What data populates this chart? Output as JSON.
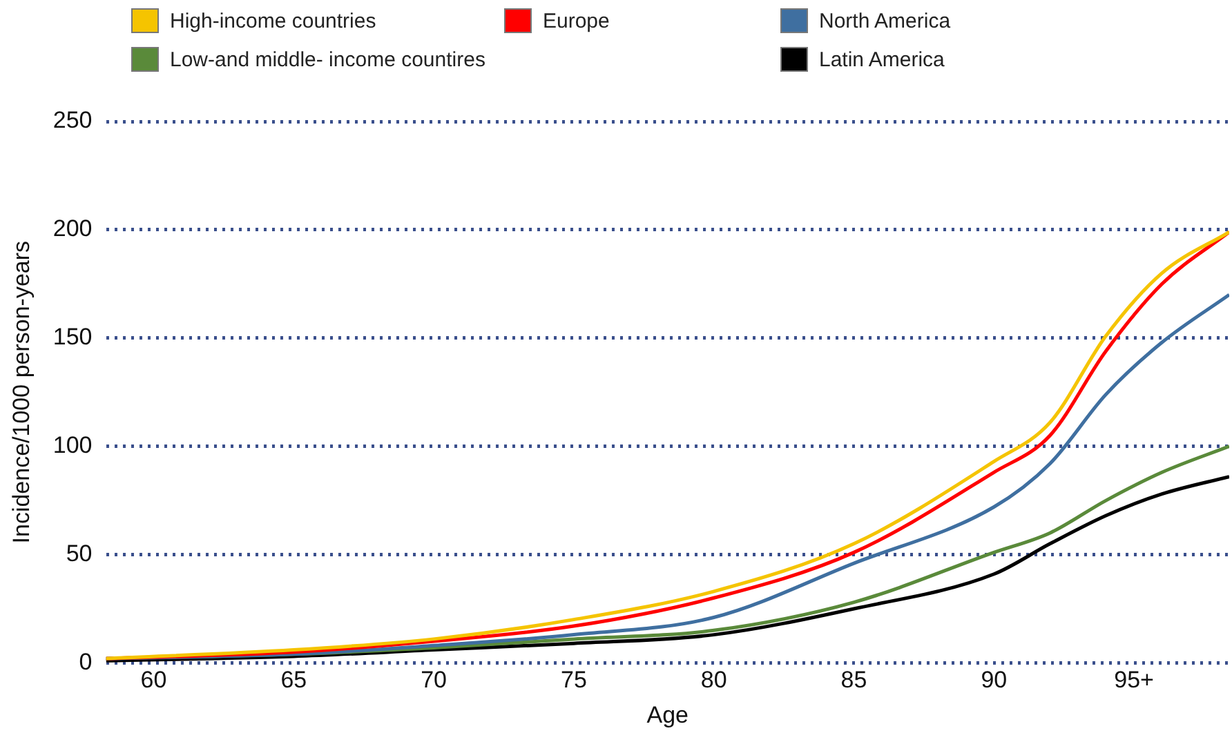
{
  "chart_data": {
    "type": "line",
    "xlabel": "Age",
    "ylabel": "Incidence/1000 person-years",
    "x": [
      58.3,
      65,
      70,
      75,
      80,
      85,
      90,
      92,
      94,
      96,
      98.4
    ],
    "xlim": [
      58.3,
      98.4
    ],
    "xticks": [
      60,
      65,
      70,
      75,
      80,
      85,
      90,
      {
        "value": 95,
        "label": "95+"
      }
    ],
    "ylim": [
      0,
      250
    ],
    "yticks": [
      0,
      50,
      100,
      150,
      200,
      250
    ],
    "grid": "y",
    "legend": "top",
    "marker": "none",
    "line_style": "solid",
    "series": [
      {
        "name": "High-income countries",
        "color": "#f5c400",
        "values": [
          2,
          6,
          11,
          20,
          33,
          55,
          93,
          111,
          151,
          180,
          199
        ]
      },
      {
        "name": "Europe",
        "color": "#ff0000",
        "values": [
          2,
          5,
          10,
          17,
          30,
          51,
          88,
          105,
          144,
          175,
          199
        ]
      },
      {
        "name": "North America",
        "color": "#3f6fa0",
        "values": [
          2,
          4,
          8,
          13,
          21,
          46,
          72,
          92,
          124,
          148,
          170
        ]
      },
      {
        "name": "Low-and middle- income countires",
        "color": "#5a8a3a",
        "values": [
          2,
          4,
          7,
          11,
          15,
          28,
          51,
          60,
          75,
          88,
          100
        ]
      },
      {
        "name": "Latin America",
        "color": "#000000",
        "values": [
          1,
          3,
          6,
          9,
          13,
          25,
          41,
          55,
          68,
          78,
          86
        ]
      }
    ]
  }
}
